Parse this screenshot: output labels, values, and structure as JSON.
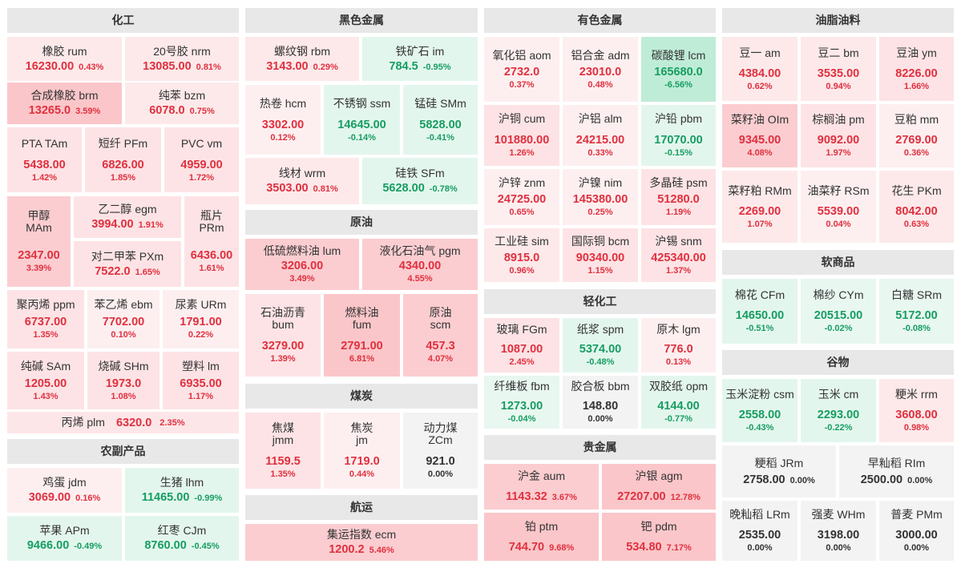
{
  "theme": {
    "up_color": "#e0303f",
    "down_color": "#179d62",
    "flat_color": "#333333",
    "header_bg": "#e8e8e8"
  },
  "sections": {
    "chemicals": {
      "title": "化工",
      "items": [
        {
          "name": "橡胶  rum",
          "price": "16230.00",
          "change": "0.43%"
        },
        {
          "name": "20号胶  nrm",
          "price": "13085.00",
          "change": "0.81%"
        },
        {
          "name": "合成橡胶  brm",
          "price": "13265.0",
          "change": "3.59%"
        },
        {
          "name": "纯苯  bzm",
          "price": "6078.0",
          "change": "0.75%"
        },
        {
          "name": "PTA  TAm",
          "price": "5438.00",
          "change": "1.42%"
        },
        {
          "name": "短纤  PFm",
          "price": "6826.00",
          "change": "1.85%"
        },
        {
          "name": "PVC  vm",
          "price": "4959.00",
          "change": "1.72%"
        },
        {
          "name1": "甲醇",
          "name2": "MAm",
          "price": "2347.00",
          "change": "3.39%"
        },
        {
          "name": "乙二醇  egm",
          "price": "3994.00",
          "change": "1.91%"
        },
        {
          "name": "对二甲苯  PXm",
          "price": "7522.0",
          "change": "1.65%"
        },
        {
          "name1": "瓶片",
          "name2": "PRm",
          "price": "6436.00",
          "change": "1.61%"
        },
        {
          "name": "聚丙烯  ppm",
          "price": "6737.00",
          "change": "1.35%"
        },
        {
          "name": "苯乙烯  ebm",
          "price": "7702.00",
          "change": "0.10%"
        },
        {
          "name": "尿素  URm",
          "price": "1791.00",
          "change": "0.22%"
        },
        {
          "name": "纯碱  SAm",
          "price": "1205.00",
          "change": "1.43%"
        },
        {
          "name": "烧碱  SHm",
          "price": "1973.0",
          "change": "1.08%"
        },
        {
          "name": "塑料  lm",
          "price": "6935.00",
          "change": "1.17%"
        },
        {
          "name": "丙烯  plm",
          "price": "6320.0",
          "change": "2.35%"
        }
      ]
    },
    "agri": {
      "title": "农副产品",
      "items": [
        {
          "name": "鸡蛋  jdm",
          "price": "3069.00",
          "change": "0.16%"
        },
        {
          "name": "生猪  lhm",
          "price": "11465.00",
          "change": "-0.99%"
        },
        {
          "name": "苹果  APm",
          "price": "9466.00",
          "change": "-0.49%"
        },
        {
          "name": "红枣  CJm",
          "price": "8760.00",
          "change": "-0.45%"
        }
      ]
    },
    "ferrous": {
      "title": "黑色金属",
      "items": [
        {
          "name": "螺纹钢  rbm",
          "price": "3143.00",
          "change": "0.29%"
        },
        {
          "name": "铁矿石  im",
          "price": "784.5",
          "change": "-0.95%"
        },
        {
          "name": "热卷  hcm",
          "price": "3302.00",
          "change": "0.12%"
        },
        {
          "name": "不锈钢  ssm",
          "price": "14645.00",
          "change": "-0.14%"
        },
        {
          "name": "锰硅  SMm",
          "price": "5828.00",
          "change": "-0.41%"
        },
        {
          "name": "线材  wrm",
          "price": "3503.00",
          "change": "0.81%"
        },
        {
          "name": "硅铁  SFm",
          "price": "5628.00",
          "change": "-0.78%"
        }
      ]
    },
    "crude": {
      "title": "原油",
      "items": [
        {
          "name": "低硫燃料油  lum",
          "price": "3206.00",
          "change": "3.49%"
        },
        {
          "name": "液化石油气  pgm",
          "price": "4340.00",
          "change": "4.55%"
        },
        {
          "name1": "石油沥青",
          "name2": "bum",
          "price": "3279.00",
          "change": "1.39%"
        },
        {
          "name1": "燃料油",
          "name2": "fum",
          "price": "2791.00",
          "change": "6.81%"
        },
        {
          "name1": "原油",
          "name2": "scm",
          "price": "457.3",
          "change": "4.07%"
        }
      ]
    },
    "coal": {
      "title": "煤炭",
      "items": [
        {
          "name1": "焦煤",
          "name2": "jmm",
          "price": "1159.5",
          "change": "1.35%"
        },
        {
          "name1": "焦炭",
          "name2": "jm",
          "price": "1719.0",
          "change": "0.44%"
        },
        {
          "name1": "动力煤",
          "name2": "ZCm",
          "price": "921.0",
          "change": "0.00%"
        }
      ]
    },
    "shipping": {
      "title": "航运",
      "items": [
        {
          "name": "集运指数  ecm",
          "price": "1200.2",
          "change": "5.46%"
        }
      ]
    },
    "nonferrous": {
      "title": "有色金属",
      "items": [
        {
          "name": "氧化铝  aom",
          "price": "2732.0",
          "change": "0.37%"
        },
        {
          "name": "铝合金  adm",
          "price": "23010.0",
          "change": "0.48%"
        },
        {
          "name": "碳酸锂  lcm",
          "price": "165680.0",
          "change": "-6.56%"
        },
        {
          "name": "沪铜  cum",
          "price": "101880.00",
          "change": "1.26%"
        },
        {
          "name": "沪铝  alm",
          "price": "24215.00",
          "change": "0.33%"
        },
        {
          "name": "沪铅  pbm",
          "price": "17070.00",
          "change": "-0.15%"
        },
        {
          "name": "沪锌  znm",
          "price": "24725.00",
          "change": "0.65%"
        },
        {
          "name": "沪镍  nim",
          "price": "145380.00",
          "change": "0.25%"
        },
        {
          "name": "多晶硅  psm",
          "price": "51280.0",
          "change": "1.19%"
        },
        {
          "name": "工业硅  sim",
          "price": "8915.0",
          "change": "0.96%"
        },
        {
          "name": "国际铜  bcm",
          "price": "90340.00",
          "change": "1.15%"
        },
        {
          "name": "沪锡  snm",
          "price": "425340.00",
          "change": "1.37%"
        }
      ]
    },
    "light": {
      "title": "轻化工",
      "items": [
        {
          "name": "玻璃  FGm",
          "price": "1087.00",
          "change": "2.45%"
        },
        {
          "name": "纸浆  spm",
          "price": "5374.00",
          "change": "-0.48%"
        },
        {
          "name": "原木  lgm",
          "price": "776.0",
          "change": "0.13%"
        },
        {
          "name": "纤维板  fbm",
          "price": "1273.00",
          "change": "-0.04%"
        },
        {
          "name": "胶合板  bbm",
          "price": "148.80",
          "change": "0.00%"
        },
        {
          "name": "双胶纸  opm",
          "price": "4144.00",
          "change": "-0.77%"
        }
      ]
    },
    "precious": {
      "title": "贵金属",
      "items": [
        {
          "name": "沪金 aum",
          "price": "1143.32",
          "change": "3.67%"
        },
        {
          "name": "沪银 agm",
          "price": "27207.00",
          "change": "12.78%"
        },
        {
          "name": "铂 ptm",
          "price": "744.70",
          "change": "9.68%"
        },
        {
          "name": "钯 pdm",
          "price": "534.80",
          "change": "7.17%"
        }
      ]
    },
    "oils": {
      "title": "油脂油料",
      "items": [
        {
          "name": "豆一  am",
          "price": "4384.00",
          "change": "0.62%"
        },
        {
          "name": "豆二  bm",
          "price": "3535.00",
          "change": "0.94%"
        },
        {
          "name": "豆油  ym",
          "price": "8226.00",
          "change": "1.66%"
        },
        {
          "name": "菜籽油  OIm",
          "price": "9345.00",
          "change": "4.08%"
        },
        {
          "name": "棕榈油  pm",
          "price": "9092.00",
          "change": "1.97%"
        },
        {
          "name": "豆粕  mm",
          "price": "2769.00",
          "change": "0.36%"
        },
        {
          "name": "菜籽粕  RMm",
          "price": "2269.00",
          "change": "1.07%"
        },
        {
          "name": "油菜籽  RSm",
          "price": "5539.00",
          "change": "0.04%"
        },
        {
          "name": "花生  PKm",
          "price": "8042.00",
          "change": "0.63%"
        }
      ]
    },
    "soft": {
      "title": "软商品",
      "items": [
        {
          "name": "棉花  CFm",
          "price": "14650.00",
          "change": "-0.51%"
        },
        {
          "name": "棉纱  CYm",
          "price": "20515.00",
          "change": "-0.02%"
        },
        {
          "name": "白糖  SRm",
          "price": "5172.00",
          "change": "-0.08%"
        }
      ]
    },
    "grains": {
      "title": "谷物",
      "items": [
        {
          "name": "玉米淀粉  csm",
          "price": "2558.00",
          "change": "-0.43%"
        },
        {
          "name": "玉米  cm",
          "price": "2293.00",
          "change": "-0.22%"
        },
        {
          "name": "粳米  rrm",
          "price": "3608.00",
          "change": "0.98%"
        },
        {
          "name": "粳稻  JRm",
          "price": "2758.00",
          "change": "0.00%"
        },
        {
          "name": "早籼稻  RIm",
          "price": "2500.00",
          "change": "0.00%"
        },
        {
          "name": "晚籼稻  LRm",
          "price": "2535.00",
          "change": "0.00%"
        },
        {
          "name": "强麦  WHm",
          "price": "3198.00",
          "change": "0.00%"
        },
        {
          "name": "普麦  PMm",
          "price": "3000.00",
          "change": "0.00%"
        }
      ]
    }
  }
}
